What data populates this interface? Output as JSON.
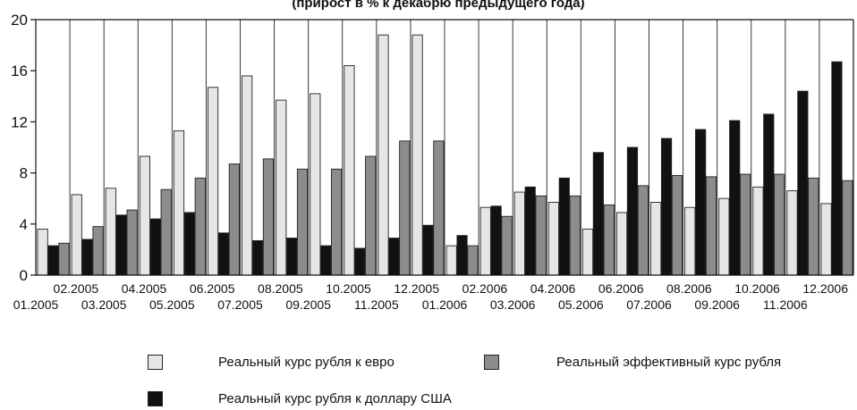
{
  "chart_data": {
    "type": "bar",
    "title": "(прирост в % к декабрю предыдущего года)",
    "ylim": [
      0,
      20
    ],
    "yticks": [
      0,
      4,
      8,
      12,
      16,
      20
    ],
    "categories": [
      "01.2005",
      "02.2005",
      "03.2005",
      "04.2005",
      "05.2005",
      "06.2005",
      "07.2005",
      "08.2005",
      "09.2005",
      "10.2005",
      "11.2005",
      "12.2005",
      "01.2006",
      "02.2006",
      "03.2006",
      "04.2006",
      "05.2006",
      "06.2006",
      "07.2006",
      "08.2006",
      "09.2006",
      "10.2006",
      "11.2006",
      "12.2006"
    ],
    "series": [
      {
        "name": "Реальный курс рубля к евро",
        "color": "#e6e6e6",
        "values": [
          3.6,
          6.3,
          6.8,
          9.3,
          11.3,
          14.7,
          15.6,
          13.7,
          14.2,
          16.4,
          18.8,
          18.8,
          2.3,
          5.3,
          6.5,
          5.7,
          3.6,
          4.9,
          5.7,
          5.3,
          6.0,
          6.9,
          6.6,
          5.6
        ]
      },
      {
        "name": "Реальный курс рубля к доллару США",
        "color": "#111111",
        "values": [
          2.3,
          2.8,
          4.7,
          4.4,
          4.9,
          3.3,
          2.7,
          2.9,
          2.3,
          2.1,
          2.9,
          3.9,
          3.1,
          5.4,
          6.9,
          7.6,
          9.6,
          10.0,
          10.7,
          11.4,
          12.1,
          12.6,
          14.4,
          16.7
        ]
      },
      {
        "name": "Реальный эффективный курс рубля",
        "color": "#8c8c8c",
        "values": [
          2.5,
          3.8,
          5.1,
          6.7,
          7.6,
          8.7,
          9.1,
          8.3,
          8.3,
          9.3,
          10.5,
          10.5,
          2.3,
          4.6,
          6.2,
          6.2,
          5.5,
          7.0,
          7.8,
          7.7,
          7.9,
          7.9,
          7.6,
          7.4
        ]
      }
    ],
    "legend_placement": "bottom"
  }
}
